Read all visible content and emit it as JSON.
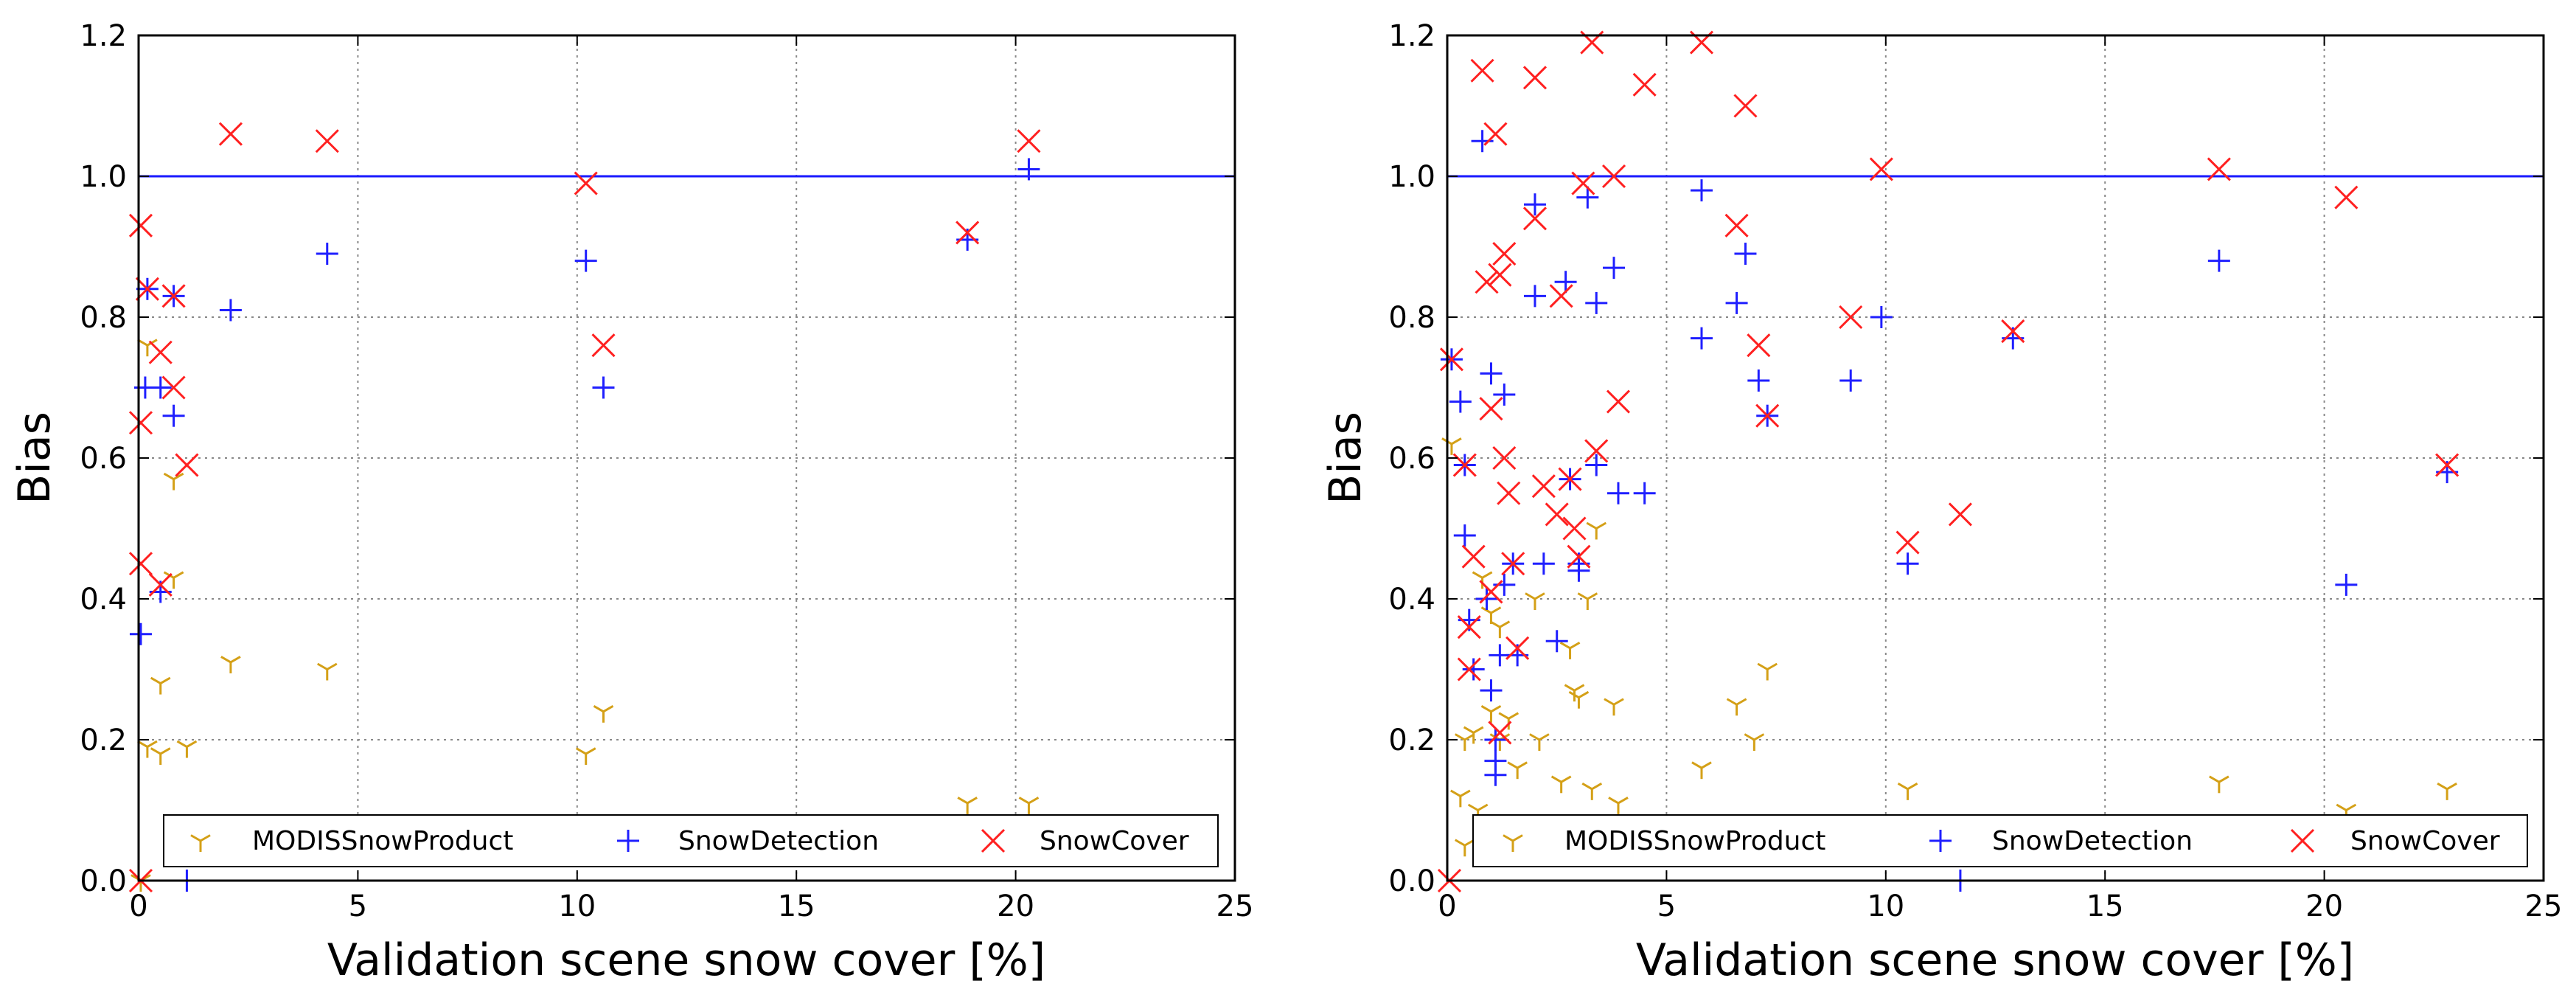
{
  "colors": {
    "modis": "#d4a017",
    "detection": "#1f1fff",
    "cover": "#ff2020",
    "refline": "#1a1aff",
    "grid": "#888888"
  },
  "chart_data": [
    {
      "type": "scatter",
      "xlabel": "Validation scene snow cover [%]",
      "ylabel": "Bias",
      "xlim": [
        0,
        25
      ],
      "ylim": [
        0,
        1.2
      ],
      "xticks": [
        "0",
        "5",
        "10",
        "15",
        "20",
        "25"
      ],
      "yticks": [
        "0.0",
        "0.2",
        "0.4",
        "0.6",
        "0.8",
        "1.0",
        "1.2"
      ],
      "grid": true,
      "reference_line": 1.0,
      "legend": {
        "placement": "bottom",
        "entries": [
          "MODISSnowProduct",
          "SnowDetection",
          "SnowCover"
        ]
      },
      "series": [
        {
          "name": "MODISSnowProduct",
          "marker": "tri-down",
          "points": [
            [
              0.05,
              0.0
            ],
            [
              0.2,
              0.76
            ],
            [
              0.2,
              0.19
            ],
            [
              0.5,
              0.28
            ],
            [
              0.5,
              0.18
            ],
            [
              0.8,
              0.43
            ],
            [
              0.8,
              0.57
            ],
            [
              1.1,
              0.19
            ],
            [
              2.1,
              0.31
            ],
            [
              4.3,
              0.3
            ],
            [
              10.2,
              0.18
            ],
            [
              10.6,
              0.24
            ],
            [
              18.9,
              0.11
            ],
            [
              20.3,
              0.11
            ]
          ]
        },
        {
          "name": "SnowDetection",
          "marker": "plus",
          "points": [
            [
              0.05,
              0.35
            ],
            [
              0.15,
              0.7
            ],
            [
              0.2,
              0.84
            ],
            [
              0.5,
              0.7
            ],
            [
              0.5,
              0.41
            ],
            [
              0.8,
              0.83
            ],
            [
              0.8,
              0.66
            ],
            [
              1.1,
              0.0
            ],
            [
              2.1,
              0.81
            ],
            [
              4.3,
              0.89
            ],
            [
              10.2,
              0.88
            ],
            [
              10.6,
              0.7
            ],
            [
              18.9,
              0.91
            ],
            [
              20.3,
              1.01
            ]
          ]
        },
        {
          "name": "SnowCover",
          "marker": "x",
          "points": [
            [
              0.05,
              0.93
            ],
            [
              0.05,
              0.65
            ],
            [
              0.05,
              0.45
            ],
            [
              0.05,
              0.0
            ],
            [
              0.2,
              0.84
            ],
            [
              0.5,
              0.75
            ],
            [
              0.5,
              0.42
            ],
            [
              0.8,
              0.7
            ],
            [
              0.8,
              0.83
            ],
            [
              1.1,
              0.59
            ],
            [
              2.1,
              1.06
            ],
            [
              4.3,
              1.05
            ],
            [
              10.2,
              0.99
            ],
            [
              10.6,
              0.76
            ],
            [
              18.9,
              0.92
            ],
            [
              20.3,
              1.05
            ]
          ]
        }
      ]
    },
    {
      "type": "scatter",
      "xlabel": "Validation scene snow cover [%]",
      "ylabel": "Bias",
      "xlim": [
        0,
        25
      ],
      "ylim": [
        0,
        1.2
      ],
      "xticks": [
        "0",
        "5",
        "10",
        "15",
        "20",
        "25"
      ],
      "yticks": [
        "0.0",
        "0.2",
        "0.4",
        "0.6",
        "0.8",
        "1.0",
        "1.2"
      ],
      "grid": true,
      "reference_line": 1.0,
      "legend": {
        "placement": "bottom",
        "entries": [
          "MODISSnowProduct",
          "SnowDetection",
          "SnowCover"
        ]
      },
      "series": [
        {
          "name": "MODISSnowProduct",
          "marker": "tri-down",
          "points": [
            [
              0.1,
              0.62
            ],
            [
              0.3,
              0.12
            ],
            [
              0.4,
              0.05
            ],
            [
              0.4,
              0.2
            ],
            [
              0.6,
              0.21
            ],
            [
              0.7,
              0.1
            ],
            [
              0.8,
              0.43
            ],
            [
              1.0,
              0.38
            ],
            [
              1.0,
              0.24
            ],
            [
              1.2,
              0.2
            ],
            [
              1.2,
              0.36
            ],
            [
              1.4,
              0.23
            ],
            [
              1.6,
              0.16
            ],
            [
              2.0,
              0.4
            ],
            [
              2.1,
              0.2
            ],
            [
              2.6,
              0.14
            ],
            [
              2.8,
              0.33
            ],
            [
              2.9,
              0.27
            ],
            [
              3.0,
              0.26
            ],
            [
              3.2,
              0.4
            ],
            [
              3.3,
              0.13
            ],
            [
              3.4,
              0.5
            ],
            [
              3.8,
              0.25
            ],
            [
              3.9,
              0.11
            ],
            [
              5.8,
              0.16
            ],
            [
              6.6,
              0.25
            ],
            [
              7.0,
              0.2
            ],
            [
              7.3,
              0.3
            ],
            [
              10.5,
              0.13
            ],
            [
              17.6,
              0.14
            ],
            [
              20.5,
              0.1
            ],
            [
              22.8,
              0.13
            ]
          ]
        },
        {
          "name": "SnowDetection",
          "marker": "plus",
          "points": [
            [
              0.1,
              0.74
            ],
            [
              0.3,
              0.68
            ],
            [
              0.4,
              0.59
            ],
            [
              0.4,
              0.49
            ],
            [
              0.5,
              0.37
            ],
            [
              0.6,
              0.3
            ],
            [
              0.8,
              1.05
            ],
            [
              0.9,
              0.4
            ],
            [
              1.0,
              0.72
            ],
            [
              1.0,
              0.27
            ],
            [
              1.1,
              0.2
            ],
            [
              1.1,
              0.17
            ],
            [
              1.1,
              0.15
            ],
            [
              1.2,
              0.32
            ],
            [
              1.3,
              0.69
            ],
            [
              1.3,
              0.42
            ],
            [
              1.5,
              0.45
            ],
            [
              1.6,
              0.32
            ],
            [
              2.0,
              0.96
            ],
            [
              2.0,
              0.83
            ],
            [
              2.2,
              0.45
            ],
            [
              2.5,
              0.34
            ],
            [
              2.7,
              0.85
            ],
            [
              2.8,
              0.57
            ],
            [
              3.0,
              0.45
            ],
            [
              3.0,
              0.44
            ],
            [
              3.2,
              0.97
            ],
            [
              3.4,
              0.82
            ],
            [
              3.4,
              0.59
            ],
            [
              3.8,
              0.87
            ],
            [
              3.9,
              0.55
            ],
            [
              4.5,
              0.55
            ],
            [
              5.8,
              0.98
            ],
            [
              5.8,
              0.77
            ],
            [
              6.6,
              0.82
            ],
            [
              6.8,
              0.89
            ],
            [
              7.1,
              0.71
            ],
            [
              7.3,
              0.66
            ],
            [
              9.2,
              0.71
            ],
            [
              9.9,
              0.8
            ],
            [
              10.5,
              0.45
            ],
            [
              11.7,
              0.0
            ],
            [
              12.9,
              0.77
            ],
            [
              17.6,
              0.88
            ],
            [
              20.5,
              0.42
            ],
            [
              22.8,
              0.58
            ]
          ]
        },
        {
          "name": "SnowCover",
          "marker": "x",
          "points": [
            [
              0.05,
              0.0
            ],
            [
              0.1,
              0.74
            ],
            [
              0.4,
              0.59
            ],
            [
              0.5,
              0.3
            ],
            [
              0.5,
              0.36
            ],
            [
              0.6,
              0.46
            ],
            [
              0.8,
              1.15
            ],
            [
              0.9,
              0.85
            ],
            [
              1.0,
              0.41
            ],
            [
              1.0,
              0.67
            ],
            [
              1.1,
              1.06
            ],
            [
              1.2,
              0.21
            ],
            [
              1.2,
              0.86
            ],
            [
              1.3,
              0.89
            ],
            [
              1.3,
              0.6
            ],
            [
              1.4,
              0.55
            ],
            [
              1.5,
              0.45
            ],
            [
              1.6,
              0.33
            ],
            [
              2.0,
              1.14
            ],
            [
              2.0,
              0.94
            ],
            [
              2.2,
              0.56
            ],
            [
              2.5,
              0.52
            ],
            [
              2.6,
              0.83
            ],
            [
              2.8,
              0.57
            ],
            [
              2.9,
              0.5
            ],
            [
              3.0,
              0.46
            ],
            [
              3.1,
              0.99
            ],
            [
              3.3,
              1.19
            ],
            [
              3.4,
              0.61
            ],
            [
              3.8,
              1.0
            ],
            [
              3.9,
              0.68
            ],
            [
              4.5,
              1.13
            ],
            [
              5.8,
              1.19
            ],
            [
              6.6,
              0.93
            ],
            [
              6.8,
              1.1
            ],
            [
              7.1,
              0.76
            ],
            [
              7.3,
              0.66
            ],
            [
              9.2,
              0.8
            ],
            [
              9.9,
              1.01
            ],
            [
              10.5,
              0.48
            ],
            [
              11.7,
              0.52
            ],
            [
              12.9,
              0.78
            ],
            [
              17.6,
              1.01
            ],
            [
              20.5,
              0.97
            ],
            [
              22.8,
              0.59
            ]
          ]
        }
      ]
    }
  ]
}
